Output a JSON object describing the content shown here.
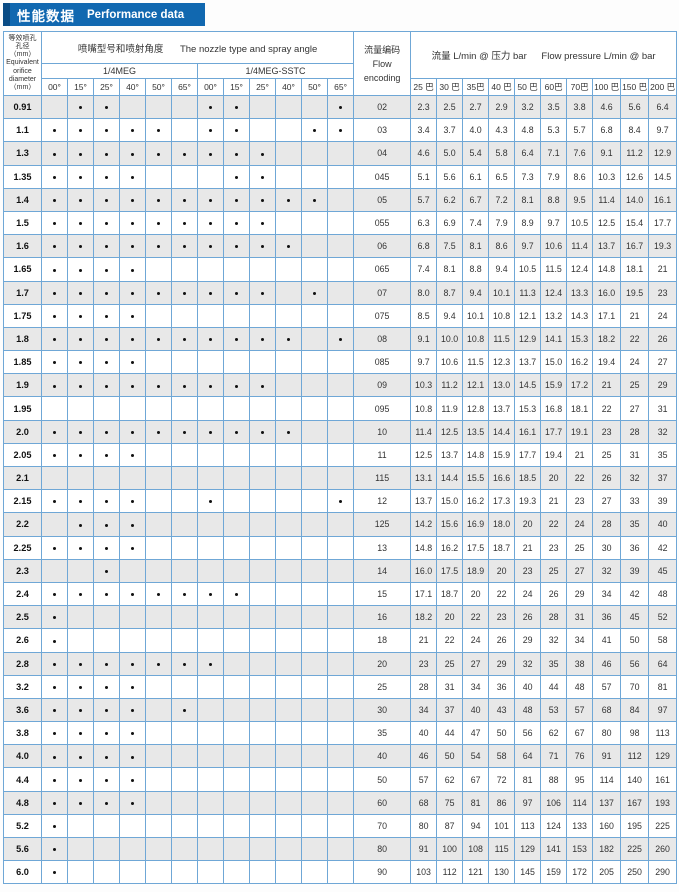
{
  "title": {
    "zh": "性能数据",
    "en": "Performance data"
  },
  "colors": {
    "accent": "#1168b0",
    "accent_dark": "#0a4c85",
    "border": "#6fa7d6",
    "row_shade": "#e8e8e8"
  },
  "table": {
    "diameter_header": {
      "lines": [
        "等效喷孔",
        "孔径",
        "（mm）",
        "Equivalent",
        "orifice",
        "diameter",
        "（mm）"
      ]
    },
    "nozzle_header": {
      "zh": "喷嘴型号和喷射角度",
      "en": "The nozzle type and spray angle"
    },
    "series": [
      "1/4MEG",
      "1/4MEG-SSTC"
    ],
    "angles": [
      "00°",
      "15°",
      "25°",
      "40°",
      "50°",
      "65°"
    ],
    "encoding_header": {
      "zh": "流量编码",
      "en": "Flow encoding"
    },
    "flow_header": {
      "zh": "流量 L/min @ 压力 bar",
      "en": "Flow pressure L/min @ bar"
    },
    "pressures": [
      "25 巴",
      "30 巴",
      "35巴",
      "40 巴",
      "50 巴",
      "60巴",
      "70巴",
      "100 巴",
      "150 巴",
      "200 巴"
    ],
    "rows": [
      {
        "d": "0.91",
        "meg": [
          0,
          1,
          1,
          0,
          0,
          0
        ],
        "sstc": [
          1,
          1,
          0,
          0,
          0,
          1
        ],
        "code": "02",
        "flows": [
          "2.3",
          "2.5",
          "2.7",
          "2.9",
          "3.2",
          "3.5",
          "3.8",
          "4.6",
          "5.6",
          "6.4"
        ]
      },
      {
        "d": "1.1",
        "meg": [
          1,
          1,
          1,
          1,
          1,
          0
        ],
        "sstc": [
          1,
          1,
          0,
          0,
          1,
          1
        ],
        "code": "03",
        "flows": [
          "3.4",
          "3.7",
          "4.0",
          "4.3",
          "4.8",
          "5.3",
          "5.7",
          "6.8",
          "8.4",
          "9.7"
        ]
      },
      {
        "d": "1.3",
        "meg": [
          1,
          1,
          1,
          1,
          1,
          1
        ],
        "sstc": [
          1,
          1,
          1,
          0,
          0,
          0
        ],
        "code": "04",
        "flows": [
          "4.6",
          "5.0",
          "5.4",
          "5.8",
          "6.4",
          "7.1",
          "7.6",
          "9.1",
          "11.2",
          "12.9"
        ]
      },
      {
        "d": "1.35",
        "meg": [
          1,
          1,
          1,
          1,
          0,
          0
        ],
        "sstc": [
          0,
          1,
          1,
          0,
          0,
          0
        ],
        "code": "045",
        "flows": [
          "5.1",
          "5.6",
          "6.1",
          "6.5",
          "7.3",
          "7.9",
          "8.6",
          "10.3",
          "12.6",
          "14.5"
        ]
      },
      {
        "d": "1.4",
        "meg": [
          1,
          1,
          1,
          1,
          1,
          1
        ],
        "sstc": [
          1,
          1,
          1,
          1,
          1,
          0
        ],
        "code": "05",
        "flows": [
          "5.7",
          "6.2",
          "6.7",
          "7.2",
          "8.1",
          "8.8",
          "9.5",
          "11.4",
          "14.0",
          "16.1"
        ]
      },
      {
        "d": "1.5",
        "meg": [
          1,
          1,
          1,
          1,
          1,
          1
        ],
        "sstc": [
          1,
          1,
          1,
          0,
          0,
          0
        ],
        "code": "055",
        "flows": [
          "6.3",
          "6.9",
          "7.4",
          "7.9",
          "8.9",
          "9.7",
          "10.5",
          "12.5",
          "15.4",
          "17.7"
        ]
      },
      {
        "d": "1.6",
        "meg": [
          1,
          1,
          1,
          1,
          1,
          1
        ],
        "sstc": [
          1,
          1,
          1,
          1,
          0,
          0
        ],
        "code": "06",
        "flows": [
          "6.8",
          "7.5",
          "8.1",
          "8.6",
          "9.7",
          "10.6",
          "11.4",
          "13.7",
          "16.7",
          "19.3"
        ]
      },
      {
        "d": "1.65",
        "meg": [
          1,
          1,
          1,
          1,
          0,
          0
        ],
        "sstc": [
          0,
          0,
          0,
          0,
          0,
          0
        ],
        "code": "065",
        "flows": [
          "7.4",
          "8.1",
          "8.8",
          "9.4",
          "10.5",
          "11.5",
          "12.4",
          "14.8",
          "18.1",
          "21"
        ]
      },
      {
        "d": "1.7",
        "meg": [
          1,
          1,
          1,
          1,
          1,
          1
        ],
        "sstc": [
          1,
          1,
          1,
          0,
          1,
          0
        ],
        "code": "07",
        "flows": [
          "8.0",
          "8.7",
          "9.4",
          "10.1",
          "11.3",
          "12.4",
          "13.3",
          "16.0",
          "19.5",
          "23"
        ]
      },
      {
        "d": "1.75",
        "meg": [
          1,
          1,
          1,
          1,
          0,
          0
        ],
        "sstc": [
          0,
          0,
          0,
          0,
          0,
          0
        ],
        "code": "075",
        "flows": [
          "8.5",
          "9.4",
          "10.1",
          "10.8",
          "12.1",
          "13.2",
          "14.3",
          "17.1",
          "21",
          "24"
        ]
      },
      {
        "d": "1.8",
        "meg": [
          1,
          1,
          1,
          1,
          1,
          1
        ],
        "sstc": [
          1,
          1,
          1,
          1,
          0,
          1
        ],
        "code": "08",
        "flows": [
          "9.1",
          "10.0",
          "10.8",
          "11.5",
          "12.9",
          "14.1",
          "15.3",
          "18.2",
          "22",
          "26"
        ]
      },
      {
        "d": "1.85",
        "meg": [
          1,
          1,
          1,
          1,
          0,
          0
        ],
        "sstc": [
          0,
          0,
          0,
          0,
          0,
          0
        ],
        "code": "085",
        "flows": [
          "9.7",
          "10.6",
          "11.5",
          "12.3",
          "13.7",
          "15.0",
          "16.2",
          "19.4",
          "24",
          "27"
        ]
      },
      {
        "d": "1.9",
        "meg": [
          1,
          1,
          1,
          1,
          1,
          1
        ],
        "sstc": [
          1,
          1,
          1,
          0,
          0,
          0
        ],
        "code": "09",
        "flows": [
          "10.3",
          "11.2",
          "12.1",
          "13.0",
          "14.5",
          "15.9",
          "17.2",
          "21",
          "25",
          "29"
        ]
      },
      {
        "d": "1.95",
        "meg": [
          0,
          0,
          0,
          0,
          0,
          0
        ],
        "sstc": [
          0,
          0,
          0,
          0,
          0,
          0
        ],
        "code": "095",
        "flows": [
          "10.8",
          "11.9",
          "12.8",
          "13.7",
          "15.3",
          "16.8",
          "18.1",
          "22",
          "27",
          "31"
        ]
      },
      {
        "d": "2.0",
        "meg": [
          1,
          1,
          1,
          1,
          1,
          1
        ],
        "sstc": [
          1,
          1,
          1,
          1,
          0,
          0
        ],
        "code": "10",
        "flows": [
          "11.4",
          "12.5",
          "13.5",
          "14.4",
          "16.1",
          "17.7",
          "19.1",
          "23",
          "28",
          "32"
        ]
      },
      {
        "d": "2.05",
        "meg": [
          1,
          1,
          1,
          1,
          0,
          0
        ],
        "sstc": [
          0,
          0,
          0,
          0,
          0,
          0
        ],
        "code": "11",
        "flows": [
          "12.5",
          "13.7",
          "14.8",
          "15.9",
          "17.7",
          "19.4",
          "21",
          "25",
          "31",
          "35"
        ]
      },
      {
        "d": "2.1",
        "meg": [
          0,
          0,
          0,
          0,
          0,
          0
        ],
        "sstc": [
          0,
          0,
          0,
          0,
          0,
          0
        ],
        "code": "115",
        "flows": [
          "13.1",
          "14.4",
          "15.5",
          "16.6",
          "18.5",
          "20",
          "22",
          "26",
          "32",
          "37"
        ]
      },
      {
        "d": "2.15",
        "meg": [
          1,
          1,
          1,
          1,
          0,
          0
        ],
        "sstc": [
          1,
          0,
          0,
          0,
          0,
          1
        ],
        "code": "12",
        "flows": [
          "13.7",
          "15.0",
          "16.2",
          "17.3",
          "19.3",
          "21",
          "23",
          "27",
          "33",
          "39"
        ]
      },
      {
        "d": "2.2",
        "meg": [
          0,
          1,
          1,
          1,
          0,
          0
        ],
        "sstc": [
          0,
          0,
          0,
          0,
          0,
          0
        ],
        "code": "125",
        "flows": [
          "14.2",
          "15.6",
          "16.9",
          "18.0",
          "20",
          "22",
          "24",
          "28",
          "35",
          "40"
        ]
      },
      {
        "d": "2.25",
        "meg": [
          1,
          1,
          1,
          1,
          0,
          0
        ],
        "sstc": [
          0,
          0,
          0,
          0,
          0,
          0
        ],
        "code": "13",
        "flows": [
          "14.8",
          "16.2",
          "17.5",
          "18.7",
          "21",
          "23",
          "25",
          "30",
          "36",
          "42"
        ]
      },
      {
        "d": "2.3",
        "meg": [
          0,
          0,
          1,
          0,
          0,
          0
        ],
        "sstc": [
          0,
          0,
          0,
          0,
          0,
          0
        ],
        "code": "14",
        "flows": [
          "16.0",
          "17.5",
          "18.9",
          "20",
          "23",
          "25",
          "27",
          "32",
          "39",
          "45"
        ]
      },
      {
        "d": "2.4",
        "meg": [
          1,
          1,
          1,
          1,
          1,
          1
        ],
        "sstc": [
          1,
          1,
          0,
          0,
          0,
          0
        ],
        "code": "15",
        "flows": [
          "17.1",
          "18.7",
          "20",
          "22",
          "24",
          "26",
          "29",
          "34",
          "42",
          "48"
        ]
      },
      {
        "d": "2.5",
        "meg": [
          1,
          0,
          0,
          0,
          0,
          0
        ],
        "sstc": [
          0,
          0,
          0,
          0,
          0,
          0
        ],
        "code": "16",
        "flows": [
          "18.2",
          "20",
          "22",
          "23",
          "26",
          "28",
          "31",
          "36",
          "45",
          "52"
        ]
      },
      {
        "d": "2.6",
        "meg": [
          1,
          0,
          0,
          0,
          0,
          0
        ],
        "sstc": [
          0,
          0,
          0,
          0,
          0,
          0
        ],
        "code": "18",
        "flows": [
          "21",
          "22",
          "24",
          "26",
          "29",
          "32",
          "34",
          "41",
          "50",
          "58"
        ]
      },
      {
        "d": "2.8",
        "meg": [
          1,
          1,
          1,
          1,
          1,
          1
        ],
        "sstc": [
          1,
          0,
          0,
          0,
          0,
          0
        ],
        "code": "20",
        "flows": [
          "23",
          "25",
          "27",
          "29",
          "32",
          "35",
          "38",
          "46",
          "56",
          "64"
        ]
      },
      {
        "d": "3.2",
        "meg": [
          1,
          1,
          1,
          1,
          0,
          0
        ],
        "sstc": [
          0,
          0,
          0,
          0,
          0,
          0
        ],
        "code": "25",
        "flows": [
          "28",
          "31",
          "34",
          "36",
          "40",
          "44",
          "48",
          "57",
          "70",
          "81"
        ]
      },
      {
        "d": "3.6",
        "meg": [
          1,
          1,
          1,
          1,
          0,
          1
        ],
        "sstc": [
          0,
          0,
          0,
          0,
          0,
          0
        ],
        "code": "30",
        "flows": [
          "34",
          "37",
          "40",
          "43",
          "48",
          "53",
          "57",
          "68",
          "84",
          "97"
        ]
      },
      {
        "d": "3.8",
        "meg": [
          1,
          1,
          1,
          1,
          0,
          0
        ],
        "sstc": [
          0,
          0,
          0,
          0,
          0,
          0
        ],
        "code": "35",
        "flows": [
          "40",
          "44",
          "47",
          "50",
          "56",
          "62",
          "67",
          "80",
          "98",
          "113"
        ]
      },
      {
        "d": "4.0",
        "meg": [
          1,
          1,
          1,
          1,
          0,
          0
        ],
        "sstc": [
          0,
          0,
          0,
          0,
          0,
          0
        ],
        "code": "40",
        "flows": [
          "46",
          "50",
          "54",
          "58",
          "64",
          "71",
          "76",
          "91",
          "112",
          "129"
        ]
      },
      {
        "d": "4.4",
        "meg": [
          1,
          1,
          1,
          1,
          0,
          0
        ],
        "sstc": [
          0,
          0,
          0,
          0,
          0,
          0
        ],
        "code": "50",
        "flows": [
          "57",
          "62",
          "67",
          "72",
          "81",
          "88",
          "95",
          "114",
          "140",
          "161"
        ]
      },
      {
        "d": "4.8",
        "meg": [
          1,
          1,
          1,
          1,
          0,
          0
        ],
        "sstc": [
          0,
          0,
          0,
          0,
          0,
          0
        ],
        "code": "60",
        "flows": [
          "68",
          "75",
          "81",
          "86",
          "97",
          "106",
          "114",
          "137",
          "167",
          "193"
        ]
      },
      {
        "d": "5.2",
        "meg": [
          1,
          0,
          0,
          0,
          0,
          0
        ],
        "sstc": [
          0,
          0,
          0,
          0,
          0,
          0
        ],
        "code": "70",
        "flows": [
          "80",
          "87",
          "94",
          "101",
          "113",
          "124",
          "133",
          "160",
          "195",
          "225"
        ]
      },
      {
        "d": "5.6",
        "meg": [
          1,
          0,
          0,
          0,
          0,
          0
        ],
        "sstc": [
          0,
          0,
          0,
          0,
          0,
          0
        ],
        "code": "80",
        "flows": [
          "91",
          "100",
          "108",
          "115",
          "129",
          "141",
          "153",
          "182",
          "225",
          "260"
        ]
      },
      {
        "d": "6.0",
        "meg": [
          1,
          0,
          0,
          0,
          0,
          0
        ],
        "sstc": [
          0,
          0,
          0,
          0,
          0,
          0
        ],
        "code": "90",
        "flows": [
          "103",
          "112",
          "121",
          "130",
          "145",
          "159",
          "172",
          "205",
          "250",
          "290"
        ]
      }
    ]
  }
}
